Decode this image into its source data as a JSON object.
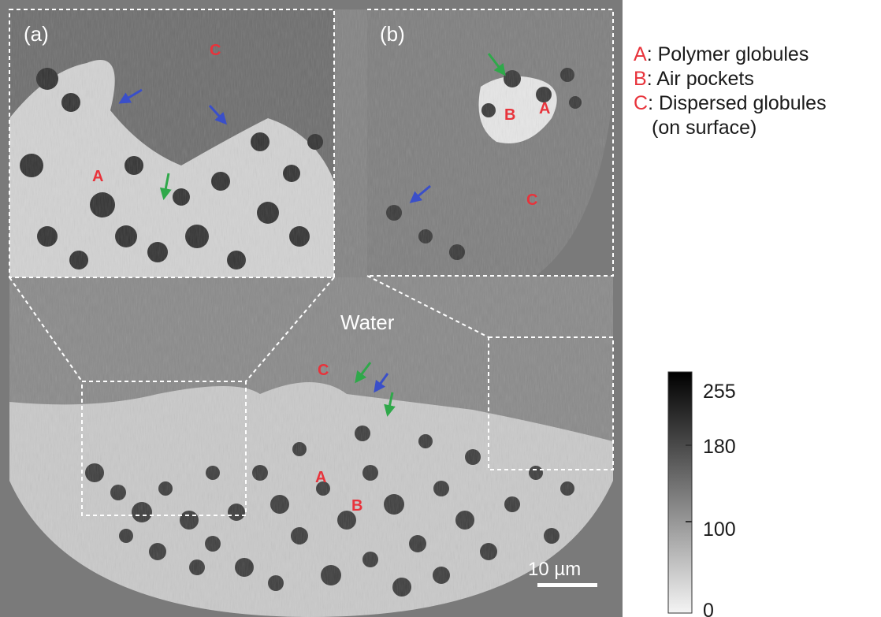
{
  "panels": {
    "a_label": "(a)",
    "b_label": "(b)"
  },
  "annotations": {
    "water": "Water",
    "letter_a": "A",
    "letter_b": "B",
    "letter_c": "C"
  },
  "legend": {
    "items": [
      {
        "key": "A",
        "text": ": Polymer globules"
      },
      {
        "key": "B",
        "text": ": Air pockets"
      },
      {
        "key": "C",
        "text": ": Dispersed globules"
      }
    ],
    "continuation": "(on surface)"
  },
  "scale_bar": {
    "label": "10 µm"
  },
  "colorbar": {
    "ticks": [
      "255",
      "180",
      "100",
      "0"
    ]
  },
  "colors": {
    "label_red": "#e8333b",
    "arrow_blue": "#3a4fc9",
    "arrow_green": "#2fa84a",
    "water_gray": "#848484",
    "background_gray": "#7a7a7a"
  }
}
